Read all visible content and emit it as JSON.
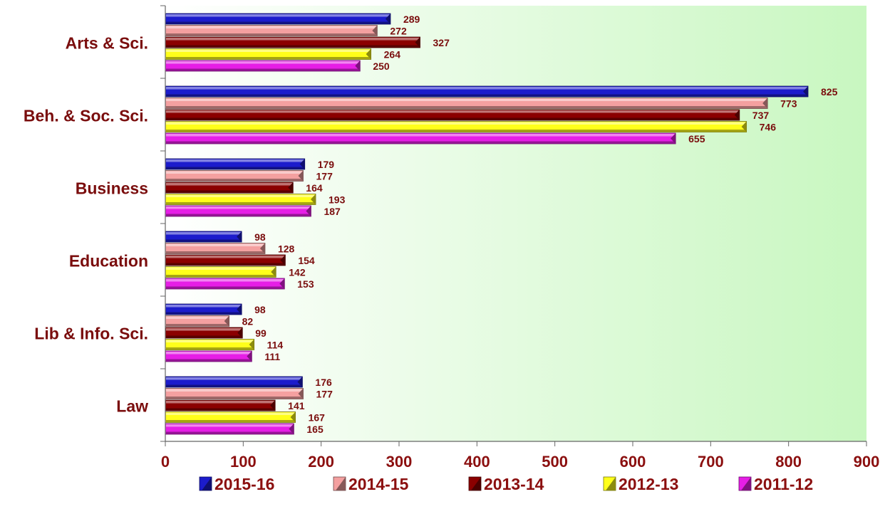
{
  "chart_data": {
    "type": "bar",
    "orientation": "horizontal",
    "title": "",
    "xlabel": "",
    "ylabel": "",
    "xlim": [
      0,
      900
    ],
    "ticks": [
      "0",
      "100",
      "200",
      "300",
      "400",
      "500",
      "600",
      "700",
      "800",
      "900"
    ],
    "tick_values": [
      0,
      100,
      200,
      300,
      400,
      500,
      600,
      700,
      800,
      900
    ],
    "grid": false,
    "legend_position": "bottom",
    "categories": [
      "Arts & Sci.",
      "Beh. & Soc. Sci.",
      "Business",
      "Education",
      "Lib & Info. Sci.",
      "Law"
    ],
    "series": [
      {
        "name": "2015-16",
        "color": "#1c1ccc",
        "values": [
          289,
          825,
          179,
          98,
          98,
          176
        ]
      },
      {
        "name": "2014-15",
        "color": "#f4a0a0",
        "values": [
          272,
          773,
          177,
          128,
          82,
          177
        ]
      },
      {
        "name": "2013-14",
        "color": "#8b0000",
        "values": [
          327,
          737,
          164,
          154,
          99,
          141
        ]
      },
      {
        "name": "2012-13",
        "color": "#ffff1a",
        "values": [
          264,
          746,
          193,
          142,
          114,
          167
        ]
      },
      {
        "name": "2011-12",
        "color": "#e61ee6",
        "values": [
          250,
          655,
          187,
          153,
          111,
          165
        ]
      }
    ]
  }
}
